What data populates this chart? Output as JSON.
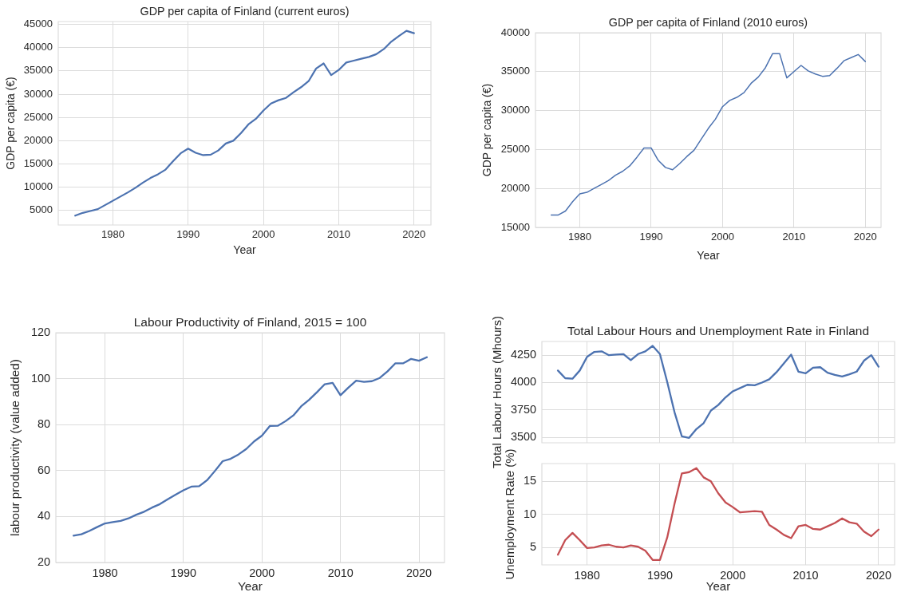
{
  "chart_data": [
    {
      "type": "line",
      "title": "GDP per capita of Finland (current euros)",
      "xlabel": "Year",
      "ylabel": "GDP per capita (€)",
      "x": [
        1975,
        1976,
        1977,
        1978,
        1979,
        1980,
        1981,
        1982,
        1983,
        1984,
        1985,
        1986,
        1987,
        1988,
        1989,
        1990,
        1991,
        1992,
        1993,
        1994,
        1995,
        1996,
        1997,
        1998,
        1999,
        2000,
        2001,
        2002,
        2003,
        2004,
        2005,
        2006,
        2007,
        2008,
        2009,
        2010,
        2011,
        2012,
        2013,
        2014,
        2015,
        2016,
        2017,
        2018,
        2019,
        2020
      ],
      "series": [
        {
          "color": "#4c72b0",
          "values": [
            3900,
            4500,
            4900,
            5300,
            6200,
            7100,
            8000,
            8900,
            9900,
            11000,
            12000,
            12800,
            13800,
            15600,
            17300,
            18300,
            17400,
            16900,
            17000,
            17900,
            19400,
            20000,
            21600,
            23500,
            24700,
            26500,
            28000,
            28700,
            29200,
            30400,
            31500,
            32800,
            35500,
            36600,
            34100,
            35200,
            36800,
            37200,
            37600,
            38000,
            38600,
            39700,
            41300,
            42500,
            43600,
            43100
          ]
        }
      ],
      "xlim": [
        1972.75,
        2022.25
      ],
      "ylim": [
        1900,
        45600
      ],
      "xticks": [
        1980,
        1990,
        2000,
        2010,
        2020
      ],
      "yticks": [
        5000,
        10000,
        15000,
        20000,
        25000,
        30000,
        35000,
        40000,
        45000
      ],
      "grid": true
    },
    {
      "type": "line",
      "title": "GDP per capita of Finland (2010 euros)",
      "xlabel": "Year",
      "ylabel": "GDP per capita (€)",
      "x": [
        1976,
        1977,
        1978,
        1979,
        1980,
        1981,
        1982,
        1983,
        1984,
        1985,
        1986,
        1987,
        1988,
        1989,
        1990,
        1991,
        1992,
        1993,
        1994,
        1995,
        1996,
        1997,
        1998,
        1999,
        2000,
        2001,
        2002,
        2003,
        2004,
        2005,
        2006,
        2007,
        2008,
        2009,
        2010,
        2011,
        2012,
        2013,
        2014,
        2015,
        2016,
        2017,
        2018,
        2019,
        2020
      ],
      "series": [
        {
          "color": "#4c72b0",
          "values": [
            16600,
            16600,
            17100,
            18300,
            19300,
            19500,
            20000,
            20500,
            21000,
            21700,
            22200,
            22900,
            24000,
            25200,
            25200,
            23600,
            22700,
            22400,
            23200,
            24100,
            24900,
            26300,
            27700,
            28900,
            30500,
            31300,
            31700,
            32300,
            33500,
            34300,
            35500,
            37300,
            37300,
            34200,
            35000,
            35800,
            35100,
            34700,
            34400,
            34500,
            35400,
            36400,
            36800,
            37200,
            36300
          ]
        }
      ],
      "xlim": [
        1973.8,
        2022.2
      ],
      "ylim": [
        15000,
        40000
      ],
      "xticks": [
        1980,
        1990,
        2000,
        2010,
        2020
      ],
      "yticks": [
        15000,
        20000,
        25000,
        30000,
        35000,
        40000
      ],
      "grid": true
    },
    {
      "type": "line",
      "title": "Labour Productivity of Finland, 2015 = 100",
      "xlabel": "Year",
      "ylabel": "labour productivity (value added)",
      "x": [
        1976,
        1977,
        1978,
        1979,
        1980,
        1981,
        1982,
        1983,
        1984,
        1985,
        1986,
        1987,
        1988,
        1989,
        1990,
        1991,
        1992,
        1993,
        1994,
        1995,
        1996,
        1997,
        1998,
        1999,
        2000,
        2001,
        2002,
        2003,
        2004,
        2005,
        2006,
        2007,
        2008,
        2009,
        2010,
        2011,
        2012,
        2013,
        2014,
        2015,
        2016,
        2017,
        2018,
        2019,
        2020,
        2021
      ],
      "series": [
        {
          "color": "#4c72b0",
          "values": [
            31.7,
            32.3,
            33.7,
            35.4,
            37.0,
            37.6,
            38.1,
            39.2,
            40.8,
            42.1,
            43.9,
            45.4,
            47.5,
            49.5,
            51.4,
            53.0,
            53.2,
            55.8,
            59.8,
            64.1,
            65.1,
            67.0,
            69.4,
            72.7,
            75.2,
            79.4,
            79.5,
            81.5,
            84.0,
            88.0,
            90.8,
            94.1,
            97.6,
            98.2,
            92.8,
            96.1,
            99.1,
            98.6,
            98.9,
            100.3,
            103.2,
            106.7,
            106.7,
            108.6,
            107.8,
            109.3
          ]
        }
      ],
      "xlim": [
        1973.75,
        2023.25
      ],
      "ylim": [
        20,
        120
      ],
      "xticks": [
        1980,
        1990,
        2000,
        2010,
        2020
      ],
      "yticks": [
        20,
        40,
        60,
        80,
        100,
        120
      ],
      "grid": true
    },
    {
      "type": "line",
      "title": "Total Labour Hours and Unemployment Rate in Finland",
      "ylabel": "Total Labour Hours (Mhours)",
      "x": [
        1976,
        1977,
        1978,
        1979,
        1980,
        1981,
        1982,
        1983,
        1984,
        1985,
        1986,
        1987,
        1988,
        1989,
        1990,
        1991,
        1992,
        1993,
        1994,
        1995,
        1996,
        1997,
        1998,
        1999,
        2000,
        2001,
        2002,
        2003,
        2004,
        2005,
        2006,
        2007,
        2008,
        2009,
        2010,
        2011,
        2012,
        2013,
        2014,
        2015,
        2016,
        2017,
        2018,
        2019,
        2020
      ],
      "series": [
        {
          "color": "#4c72b0",
          "values": [
            4110,
            4040,
            4035,
            4110,
            4235,
            4280,
            4285,
            4250,
            4255,
            4260,
            4205,
            4260,
            4285,
            4335,
            4260,
            4005,
            3730,
            3510,
            3495,
            3575,
            3630,
            3745,
            3795,
            3865,
            3920,
            3950,
            3980,
            3975,
            4000,
            4030,
            4095,
            4175,
            4255,
            4100,
            4085,
            4135,
            4140,
            4090,
            4070,
            4055,
            4075,
            4100,
            4200,
            4250,
            4145
          ]
        }
      ],
      "xlim": [
        1973.8,
        2022.2
      ],
      "ylim": [
        3450,
        4375
      ],
      "xticks": [
        1980,
        1990,
        2000,
        2010,
        2020
      ],
      "yticks": [
        3500,
        3750,
        4000,
        4250
      ],
      "grid": true,
      "tick_labels": "y"
    },
    {
      "type": "line",
      "xlabel": "Year",
      "ylabel": "Unemployment Rate (%)",
      "x": [
        1976,
        1977,
        1978,
        1979,
        1980,
        1981,
        1982,
        1983,
        1984,
        1985,
        1986,
        1987,
        1988,
        1989,
        1990,
        1991,
        1992,
        1993,
        1994,
        1995,
        1996,
        1997,
        1998,
        1999,
        2000,
        2001,
        2002,
        2003,
        2004,
        2005,
        2006,
        2007,
        2008,
        2009,
        2010,
        2011,
        2012,
        2013,
        2014,
        2015,
        2016,
        2017,
        2018,
        2019,
        2020
      ],
      "series": [
        {
          "color": "#c44e52",
          "values": [
            3.9,
            6.1,
            7.2,
            6.1,
            4.9,
            5.0,
            5.3,
            5.4,
            5.1,
            5.0,
            5.3,
            5.1,
            4.5,
            3.1,
            3.1,
            6.5,
            11.6,
            16.2,
            16.4,
            17.0,
            15.6,
            15.0,
            13.2,
            11.8,
            11.1,
            10.3,
            10.4,
            10.5,
            10.4,
            8.4,
            7.7,
            6.9,
            6.4,
            8.2,
            8.4,
            7.8,
            7.7,
            8.2,
            8.7,
            9.4,
            8.8,
            8.6,
            7.4,
            6.7,
            7.7
          ]
        }
      ],
      "xlim": [
        1973.8,
        2022.2
      ],
      "ylim": [
        2.35,
        17.7
      ],
      "xticks": [
        1980,
        1990,
        2000,
        2010,
        2020
      ],
      "yticks": [
        5,
        10,
        15
      ],
      "grid": true
    }
  ]
}
